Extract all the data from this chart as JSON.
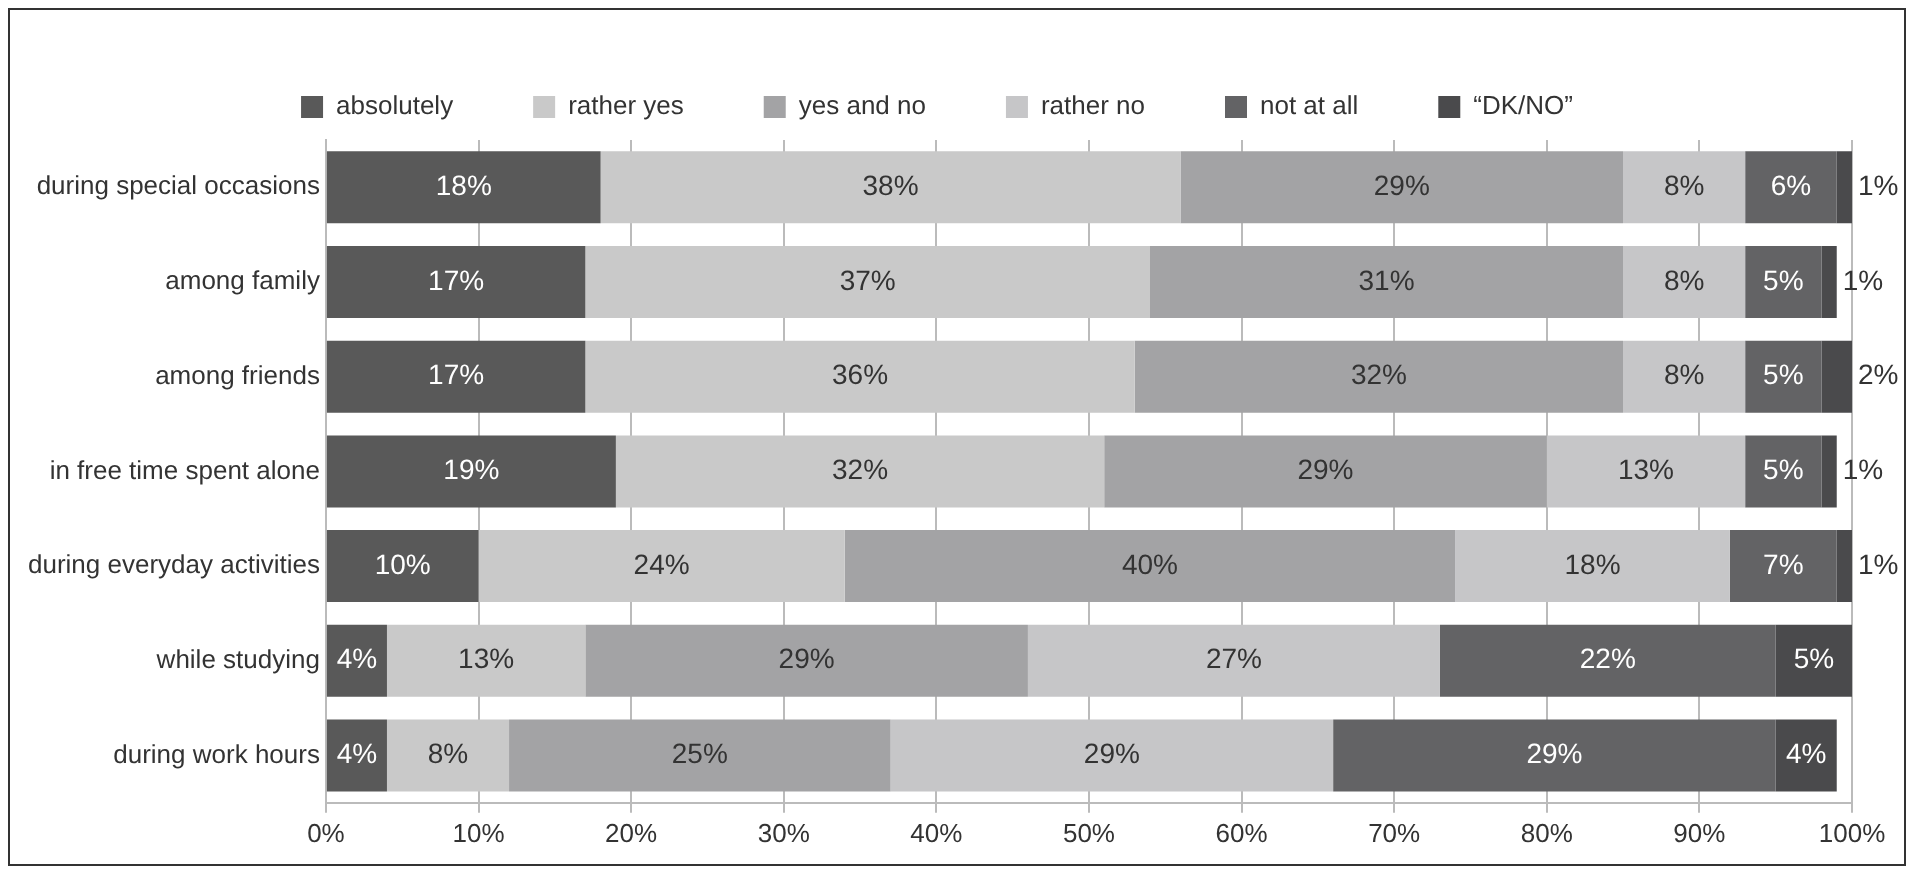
{
  "chart_data": {
    "type": "bar",
    "orientation": "horizontal",
    "stacked": true,
    "categories": [
      "during special occasions",
      "among family",
      "among friends",
      "in free time spent alone",
      "during everyday activities",
      "while studying",
      "during work hours"
    ],
    "series": [
      {
        "name": "absolutely",
        "color": "#595959",
        "values": [
          18,
          17,
          17,
          19,
          10,
          4,
          4
        ],
        "value_labels": [
          "18%",
          "17%",
          "17%",
          "19%",
          "10%",
          "4%",
          "4%"
        ]
      },
      {
        "name": "rather yes",
        "color": "#c9c9c9",
        "values": [
          38,
          37,
          36,
          32,
          24,
          13,
          8
        ],
        "value_labels": [
          "38%",
          "37%",
          "36%",
          "32%",
          "24%",
          "13%",
          "8%"
        ]
      },
      {
        "name": "yes and no",
        "color": "#a3a3a5",
        "values": [
          29,
          31,
          32,
          29,
          40,
          29,
          25
        ],
        "value_labels": [
          "29%",
          "31%",
          "32%",
          "29%",
          "40%",
          "29%",
          "25%"
        ]
      },
      {
        "name": "rather no",
        "color": "#c6c6c8",
        "values": [
          8,
          8,
          8,
          13,
          18,
          27,
          29
        ],
        "value_labels": [
          "8%",
          "8%",
          "8%",
          "13%",
          "18%",
          "27%",
          "29%"
        ]
      },
      {
        "name": "not at all",
        "color": "#636365",
        "values": [
          6,
          5,
          5,
          5,
          7,
          22,
          29
        ],
        "value_labels": [
          "6%",
          "5%",
          "5%",
          "5%",
          "7%",
          "22%",
          "29%"
        ]
      },
      {
        "name": "“DK/NO”",
        "color": "#4a4a4c",
        "values": [
          1,
          1,
          2,
          1,
          1,
          5,
          4
        ],
        "value_labels": [
          "1%",
          "1%",
          "2%",
          "1%",
          "1%",
          "5%",
          "4%"
        ]
      }
    ],
    "xlim": [
      0,
      100
    ],
    "xticks": [
      {
        "value": 0,
        "label": "0%"
      },
      {
        "value": 10,
        "label": "10%"
      },
      {
        "value": 20,
        "label": "20%"
      },
      {
        "value": 30,
        "label": "30%"
      },
      {
        "value": 40,
        "label": "40%"
      },
      {
        "value": 50,
        "label": "50%"
      },
      {
        "value": 60,
        "label": "60%"
      },
      {
        "value": 70,
        "label": "70%"
      },
      {
        "value": 80,
        "label": "80%"
      },
      {
        "value": 90,
        "label": "90%"
      },
      {
        "value": 100,
        "label": "100%"
      }
    ],
    "grid": "x",
    "legend": "top"
  }
}
